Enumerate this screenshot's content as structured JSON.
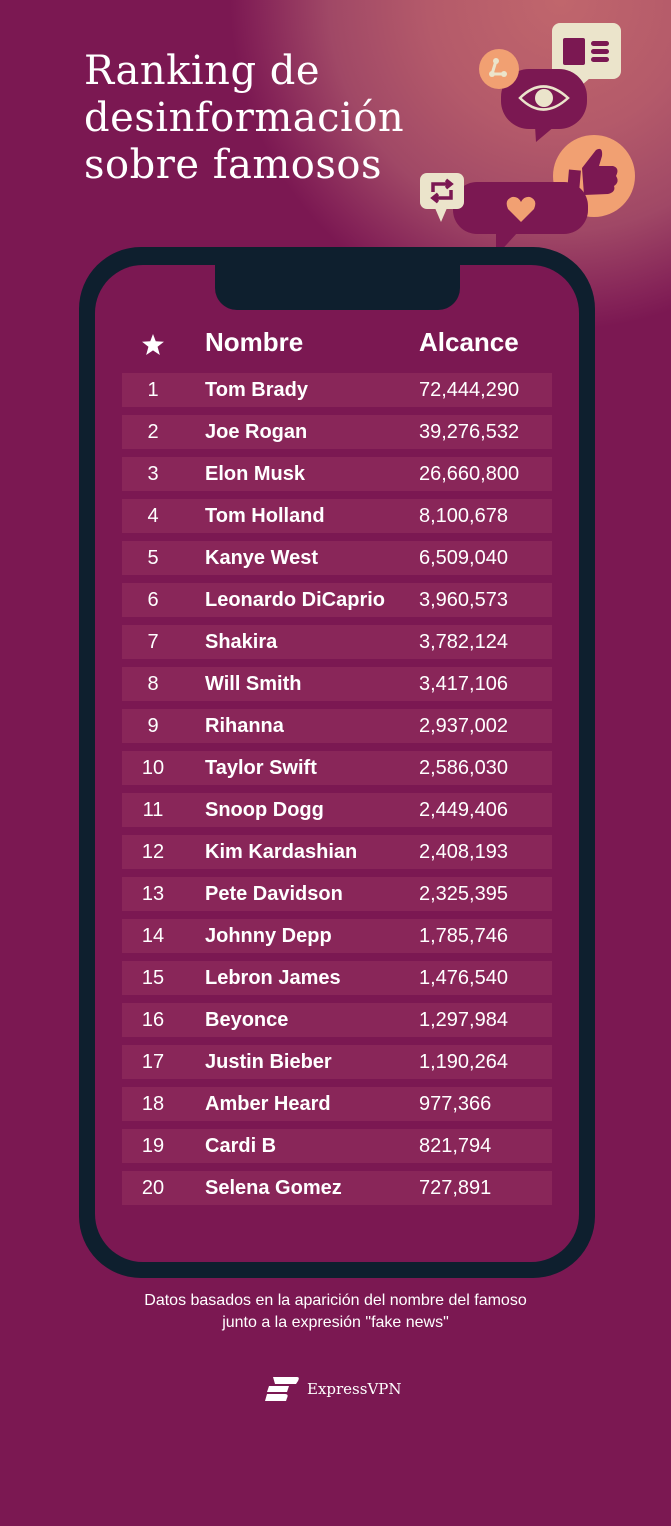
{
  "title": [
    "Ranking de",
    "desinformación",
    "sobre famosos"
  ],
  "table": {
    "headers": {
      "rank_icon": "star-icon",
      "name": "Nombre",
      "reach": "Alcance"
    },
    "rows": [
      [
        "1",
        "Tom Brady",
        "72,444,290"
      ],
      [
        "2",
        "Joe Rogan",
        "39,276,532"
      ],
      [
        "3",
        "Elon Musk",
        "26,660,800"
      ],
      [
        "4",
        "Tom Holland",
        "8,100,678"
      ],
      [
        "5",
        "Kanye West",
        "6,509,040"
      ],
      [
        "6",
        "Leonardo DiCaprio",
        "3,960,573"
      ],
      [
        "7",
        "Shakira",
        "3,782,124"
      ],
      [
        "8",
        "Will Smith",
        "3,417,106"
      ],
      [
        "9",
        "Rihanna",
        "2,937,002"
      ],
      [
        "10",
        "Taylor Swift",
        "2,586,030"
      ],
      [
        "11",
        "Snoop Dogg",
        "2,449,406"
      ],
      [
        "12",
        "Kim Kardashian",
        "2,408,193"
      ],
      [
        "13",
        "Pete Davidson",
        "2,325,395"
      ],
      [
        "14",
        "Johnny Depp",
        "1,785,746"
      ],
      [
        "15",
        "Lebron James",
        "1,476,540"
      ],
      [
        "16",
        "Beyonce",
        "1,297,984"
      ],
      [
        "17",
        "Justin Bieber",
        "1,190,264"
      ],
      [
        "18",
        "Amber Heard",
        "977,366"
      ],
      [
        "19",
        "Cardi B",
        "821,794"
      ],
      [
        "20",
        "Selena Gomez",
        "727,891"
      ]
    ]
  },
  "note": [
    "Datos basados en la aparición del nombre del famoso",
    "junto a la expresión \"fake news\""
  ],
  "brand": "ExpressVPN",
  "colors": {
    "background": "#7b1852",
    "phone": "#0e1f2e",
    "row": "#892659",
    "cream": "#ebe4cb",
    "peach": "#f1a072"
  }
}
